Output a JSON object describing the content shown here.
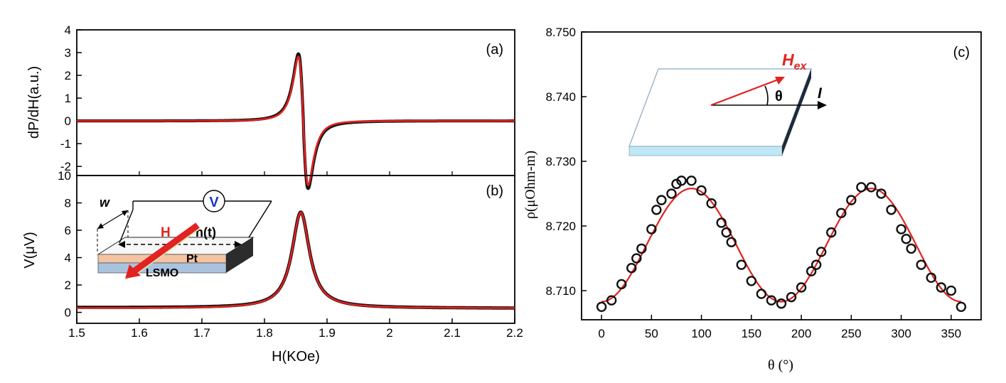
{
  "colors": {
    "fit": "#e02020",
    "data": "#111111",
    "frame": "#000000"
  },
  "inset_a": {
    "w_label": "w",
    "v_label": "V",
    "h_label": "H",
    "ht_label": "h(t)",
    "pt_label": "Pt",
    "lsmo_label": "LSMO"
  },
  "inset_c": {
    "hex_base": "H",
    "hex_sub": "ex",
    "theta_label": "θ",
    "i_label": "I"
  },
  "chart_data": [
    {
      "type": "line",
      "panel": "(a)",
      "ylabel": "dP/dH(a.u.)",
      "xlim": [
        1.5,
        2.2
      ],
      "ylim": [
        -2.4,
        4
      ],
      "yticks": [
        -2,
        -1,
        0,
        1,
        2,
        3,
        4
      ],
      "series": [
        {
          "name": "",
          "role": "data",
          "model": "dlorentz",
          "H0": 1.862,
          "dH": 0.0135,
          "amp": 3.4,
          "tail": 0.12
        },
        {
          "name": "",
          "role": "fit",
          "model": "dlorentz",
          "H0": 1.862,
          "dH": 0.0135,
          "amp": 3.35,
          "tail": 0.0
        }
      ]
    },
    {
      "type": "line",
      "panel": "(b)",
      "ylabel": "V(μV)",
      "xlabel": "H(KOe)",
      "xlim": [
        1.5,
        2.2
      ],
      "ylim": [
        -0.8,
        10
      ],
      "xticks": [
        1.5,
        1.6,
        1.7,
        1.8,
        1.9,
        2.0,
        2.1,
        2.2
      ],
      "yticks": [
        0,
        2,
        4,
        6,
        8,
        10
      ],
      "series": [
        {
          "name": "",
          "role": "data",
          "model": "lorentz",
          "H0": 1.858,
          "dH": 0.017,
          "amp": 7.0,
          "base_start": 0.35,
          "base_end": 0.3
        },
        {
          "name": "",
          "role": "fit",
          "model": "lorentz",
          "H0": 1.858,
          "dH": 0.017,
          "amp": 7.0,
          "base_start": 0.3,
          "base_end": 0.3
        }
      ]
    },
    {
      "type": "scatter",
      "panel": "(c)",
      "ylabel": "ρ(μOhm-m)",
      "xlabel": "θ (°)",
      "xlim": [
        -20,
        380
      ],
      "ylim": [
        8.7055,
        8.75
      ],
      "xticks": [
        0,
        50,
        100,
        150,
        200,
        250,
        300,
        350
      ],
      "yticks": [
        8.71,
        8.72,
        8.73,
        8.74,
        8.75
      ],
      "ytick_labels": [
        "8.710",
        "8.720",
        "8.730",
        "8.740",
        "8.750"
      ],
      "x": [
        0,
        10,
        20,
        30,
        35,
        40,
        50,
        55,
        60,
        70,
        75,
        80,
        90,
        100,
        110,
        120,
        125,
        130,
        140,
        150,
        160,
        170,
        180,
        190,
        200,
        210,
        215,
        220,
        230,
        240,
        250,
        260,
        270,
        280,
        290,
        300,
        305,
        310,
        320,
        330,
        340,
        350,
        360
      ],
      "y": [
        8.7075,
        8.7085,
        8.711,
        8.7135,
        8.715,
        8.7165,
        8.7195,
        8.7225,
        8.724,
        8.725,
        8.7265,
        8.727,
        8.727,
        8.7255,
        8.7235,
        8.7205,
        8.719,
        8.7175,
        8.714,
        8.7115,
        8.7095,
        8.7085,
        8.708,
        8.709,
        8.7105,
        8.713,
        8.714,
        8.716,
        8.719,
        8.722,
        8.724,
        8.726,
        8.726,
        8.725,
        8.7225,
        8.7195,
        8.718,
        8.7165,
        8.714,
        8.712,
        8.7105,
        8.71,
        8.7075
      ],
      "fit": {
        "name": "",
        "role": "fit",
        "model": "cos2",
        "rho0": 8.7083,
        "amp": 0.0175
      }
    }
  ]
}
